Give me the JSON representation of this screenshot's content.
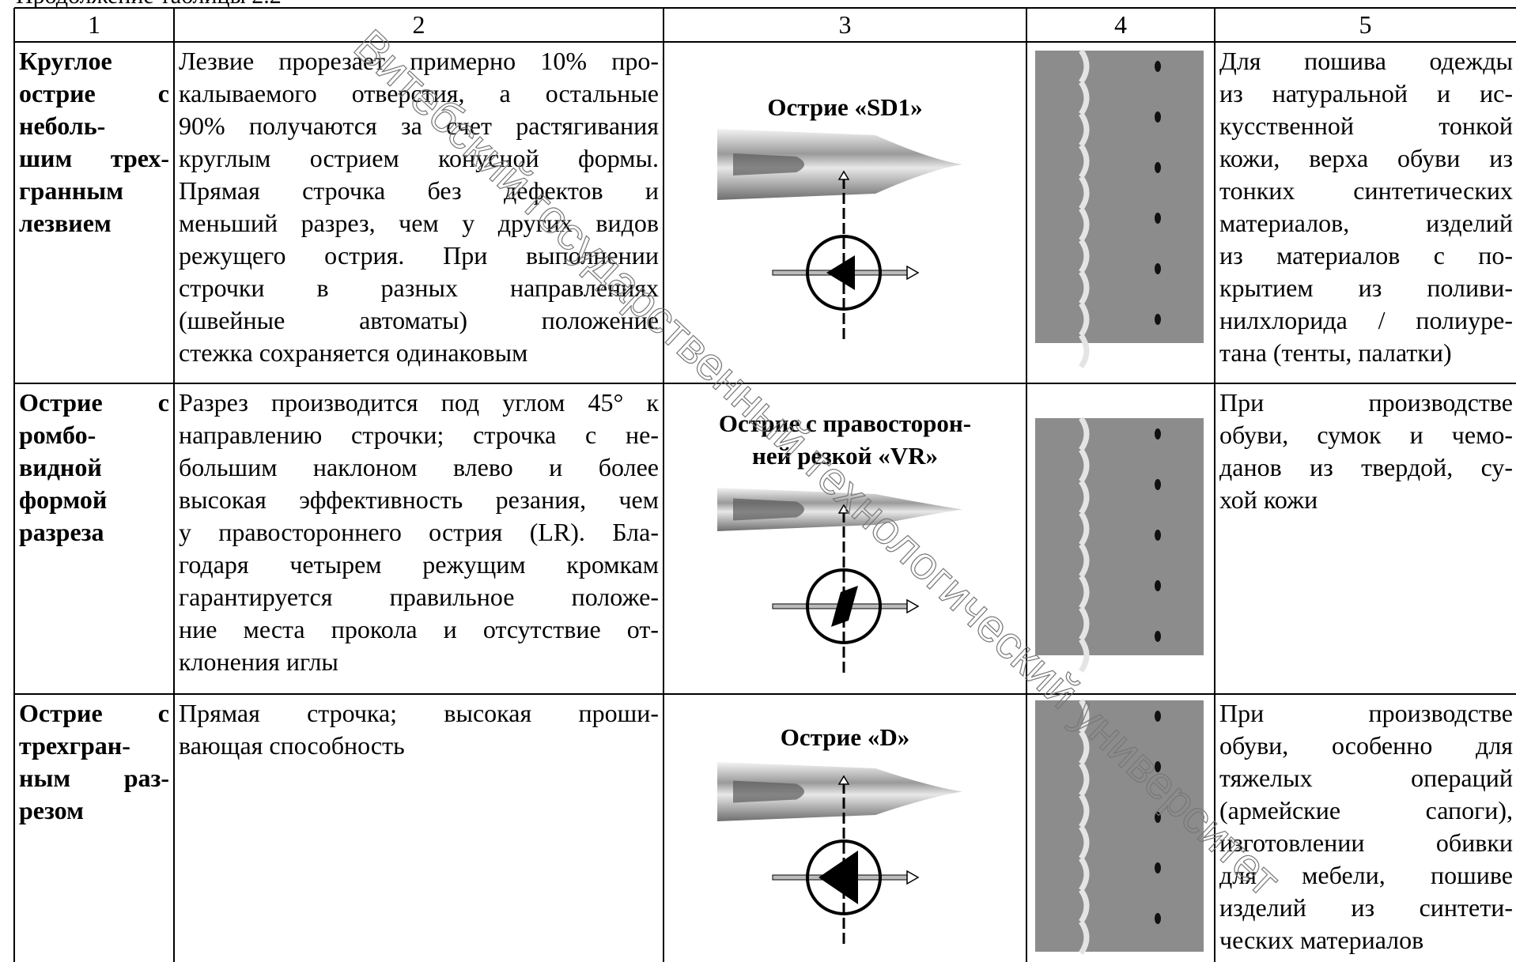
{
  "caption": "Продолжение таблицы 2.2",
  "watermark": "Витебский государственный технологический университет",
  "table": {
    "header": [
      "1",
      "2",
      "3",
      "4",
      "5"
    ],
    "rows": [
      {
        "name": [
          "Круглое",
          "острие с",
          "неболь-",
          "шим трех-",
          "гранным",
          "лезвием"
        ],
        "description": [
          "Лезвие прорезает примерно 10% про-",
          "калываемого отверстия, а остальные",
          "90% получаются за счет растягивания",
          "круглым острием конусной формы.",
          "Прямая строчка без дефектов и",
          "меньший разрез, чем у других видов",
          "режущего острия. При выполнении",
          "строчки в разных направлениях",
          "(швейные автоматы) положение",
          "стежка сохраняется одинаковым"
        ],
        "point": [
          "Острие «SD1»"
        ],
        "application": [
          "Для пошива одежды",
          "из натуральной и ис-",
          "кусственной тонкой",
          "кожи, верха обуви из",
          "тонких синтетических",
          "материалов, изделий",
          "из материалов с по-",
          "крытием из поливи-",
          "нилхлорида / полиуре-",
          "тана (тенты, палатки)"
        ]
      },
      {
        "name": [
          "Острие с",
          "ромбо-",
          "видной",
          "формой",
          "разреза"
        ],
        "description": [
          "Разрез производится под углом 45° к",
          "направлению строчки; строчка с не-",
          "большим наклоном влево и более",
          "высокая эффективность резания, чем",
          "у правостороннего острия (LR). Бла-",
          "годаря четырем режущим кромкам",
          "гарантируется правильное положе-",
          "ние места прокола и отсутствие от-",
          "клонения иглы"
        ],
        "point": [
          "Острие с правосторон-",
          "ней резкой «VR»"
        ],
        "application": [
          "При производстве",
          "обуви, сумок и чемо-",
          "данов из твердой, су-",
          "хой кожи"
        ]
      },
      {
        "name": [
          "Острие с",
          "трехгран-",
          "ным раз-",
          "резом"
        ],
        "description": [
          "Прямая строчка; высокая проши-",
          "вающая способность"
        ],
        "point": [
          "Острие «D»"
        ],
        "application": [
          "При производстве",
          "обуви, особенно для",
          "тяжелых операций",
          "(армейские сапоги),",
          "изготовлении обивки",
          "для мебели, пошиве",
          "изделий из синтети-",
          "ческих материалов"
        ]
      }
    ]
  }
}
